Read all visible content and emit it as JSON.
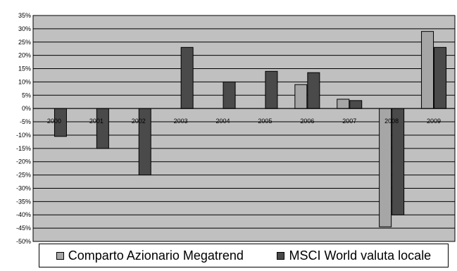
{
  "chart_data": {
    "type": "bar",
    "title": "",
    "xlabel": "",
    "ylabel": "",
    "categories": [
      "2000",
      "2001",
      "2002",
      "2003",
      "2004",
      "2005",
      "2006",
      "2007",
      "2008",
      "2009"
    ],
    "ylim": [
      -50,
      35
    ],
    "ytick_step": 5,
    "ytick_labels": [
      "35%",
      "30%",
      "25%",
      "20%",
      "15%",
      "10%",
      "5%",
      "0%",
      "-5%",
      "-10%",
      "-15%",
      "-20%",
      "-25%",
      "-30%",
      "-35%",
      "-40%",
      "-45%",
      "-50%"
    ],
    "grid": true,
    "legend_position": "bottom",
    "series": [
      {
        "name": "Comparto Azionario Megatrend",
        "color": "#a6a6a6",
        "values": [
          null,
          null,
          null,
          null,
          null,
          null,
          9,
          3.5,
          -44.5,
          29
        ]
      },
      {
        "name": "MSCI World valuta locale",
        "color": "#4a4a4a",
        "values": [
          -10.5,
          -15,
          -25,
          23,
          10,
          14,
          13.5,
          3,
          -40,
          23
        ]
      }
    ],
    "plot_background": "#c0c0c0"
  }
}
